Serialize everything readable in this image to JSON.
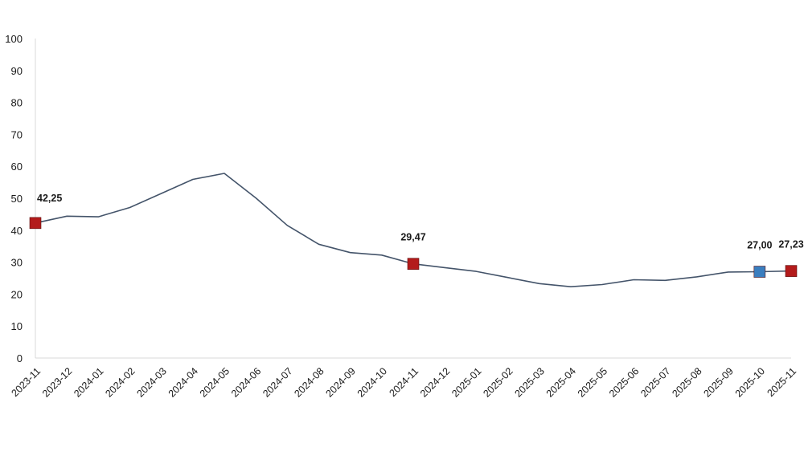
{
  "chart_data": {
    "type": "line",
    "title": "",
    "xlabel": "",
    "ylabel": "",
    "ylim": [
      0,
      100
    ],
    "yticks": [
      0,
      10,
      20,
      30,
      40,
      50,
      60,
      70,
      80,
      90,
      100
    ],
    "grid": false,
    "legend": "none",
    "categories": [
      "2023-11",
      "2023-12",
      "2024-01",
      "2024-02",
      "2024-03",
      "2024-04",
      "2024-05",
      "2024-06",
      "2024-07",
      "2024-08",
      "2024-09",
      "2024-10",
      "2024-11",
      "2024-12",
      "2025-01",
      "2025-02",
      "2025-03",
      "2025-04",
      "2025-05",
      "2025-06",
      "2025-07",
      "2025-08",
      "2025-09",
      "2025-10",
      "2025-11"
    ],
    "series": [
      {
        "color": "#44546a",
        "values": [
          42.25,
          44.4,
          44.2,
          47.1,
          51.5,
          55.9,
          57.8,
          50.1,
          41.5,
          35.6,
          33.0,
          32.2,
          29.47,
          28.3,
          27.1,
          25.2,
          23.3,
          22.3,
          23.0,
          24.5,
          24.3,
          25.4,
          26.9,
          27.0,
          27.23
        ]
      }
    ],
    "markers": [
      {
        "index": 0,
        "label": "42,25",
        "color": "#b31b1b"
      },
      {
        "index": 12,
        "label": "29,47",
        "color": "#b31b1b"
      },
      {
        "index": 23,
        "label": "27,00",
        "color": "#3a7ebf"
      },
      {
        "index": 24,
        "label": "27,23",
        "color": "#b31b1b"
      }
    ]
  }
}
